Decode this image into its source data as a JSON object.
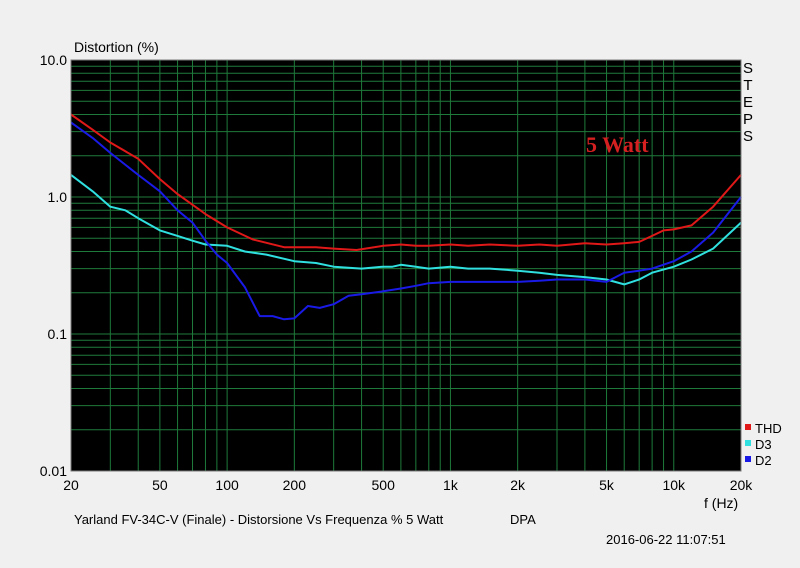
{
  "chart_data": {
    "type": "line",
    "title": "",
    "ylabel": "Distortion (%)",
    "xlabel": "f (Hz)",
    "xscale": "log",
    "yscale": "log",
    "xlim": [
      20,
      20000
    ],
    "ylim": [
      0.01,
      10
    ],
    "grid": true,
    "background": "#000000",
    "grid_color": "#1e7a3a",
    "legend_position": "bottom-right",
    "x_ticks": [
      {
        "v": 20,
        "label": "20"
      },
      {
        "v": 50,
        "label": "50"
      },
      {
        "v": 100,
        "label": "100"
      },
      {
        "v": 200,
        "label": "200"
      },
      {
        "v": 500,
        "label": "500"
      },
      {
        "v": 1000,
        "label": "1k"
      },
      {
        "v": 2000,
        "label": "2k"
      },
      {
        "v": 5000,
        "label": "5k"
      },
      {
        "v": 10000,
        "label": "10k"
      },
      {
        "v": 20000,
        "label": "20k"
      }
    ],
    "y_ticks": [
      {
        "v": 10,
        "label": "10.0"
      },
      {
        "v": 1,
        "label": "1.0"
      },
      {
        "v": 0.1,
        "label": "0.1"
      },
      {
        "v": 0.01,
        "label": "0.01"
      }
    ],
    "annotation": {
      "text": "5 Watt",
      "color": "#d42020"
    },
    "side_label": "STEPS",
    "series": [
      {
        "name": "THD",
        "color": "#e01818",
        "x": [
          20,
          25,
          30,
          40,
          50,
          60,
          80,
          100,
          130,
          180,
          250,
          300,
          380,
          500,
          600,
          700,
          800,
          1000,
          1200,
          1500,
          2000,
          2500,
          3000,
          4000,
          5000,
          6000,
          7000,
          8000,
          9000,
          10000,
          12000,
          15000,
          20000
        ],
        "y": [
          4.0,
          3.1,
          2.5,
          1.9,
          1.35,
          1.05,
          0.75,
          0.6,
          0.49,
          0.43,
          0.43,
          0.42,
          0.41,
          0.44,
          0.45,
          0.44,
          0.44,
          0.45,
          0.44,
          0.45,
          0.44,
          0.45,
          0.44,
          0.46,
          0.45,
          0.46,
          0.47,
          0.52,
          0.57,
          0.58,
          0.62,
          0.85,
          1.45
        ]
      },
      {
        "name": "D3",
        "color": "#30e0e0",
        "x": [
          20,
          25,
          30,
          35,
          40,
          50,
          60,
          70,
          80,
          100,
          120,
          150,
          200,
          250,
          300,
          400,
          500,
          550,
          600,
          700,
          800,
          1000,
          1200,
          1500,
          2000,
          2500,
          3000,
          4000,
          5000,
          6000,
          7000,
          8000,
          10000,
          12000,
          15000,
          20000
        ],
        "y": [
          1.45,
          1.1,
          0.85,
          0.8,
          0.7,
          0.57,
          0.52,
          0.48,
          0.45,
          0.44,
          0.4,
          0.38,
          0.34,
          0.33,
          0.31,
          0.3,
          0.31,
          0.31,
          0.32,
          0.31,
          0.3,
          0.31,
          0.3,
          0.3,
          0.29,
          0.28,
          0.27,
          0.26,
          0.25,
          0.23,
          0.25,
          0.28,
          0.31,
          0.35,
          0.42,
          0.65
        ]
      },
      {
        "name": "D2",
        "color": "#1a1ae6",
        "x": [
          20,
          25,
          30,
          40,
          50,
          60,
          70,
          80,
          90,
          100,
          120,
          140,
          160,
          180,
          200,
          230,
          260,
          300,
          350,
          400,
          500,
          600,
          700,
          800,
          1000,
          1500,
          2000,
          2500,
          3000,
          4000,
          5000,
          6000,
          7000,
          8000,
          10000,
          12000,
          15000,
          20000
        ],
        "y": [
          3.5,
          2.7,
          2.1,
          1.45,
          1.1,
          0.8,
          0.65,
          0.48,
          0.38,
          0.33,
          0.22,
          0.135,
          0.135,
          0.128,
          0.13,
          0.16,
          0.155,
          0.165,
          0.19,
          0.195,
          0.205,
          0.215,
          0.225,
          0.235,
          0.24,
          0.24,
          0.24,
          0.245,
          0.25,
          0.25,
          0.24,
          0.28,
          0.29,
          0.3,
          0.34,
          0.4,
          0.55,
          1.0
        ]
      }
    ]
  },
  "footer": {
    "caption": "Yarland FV-34C-V (Finale) - Distorsione Vs Frequenza % 5 Watt",
    "tag": "DPA",
    "timestamp": "2016-06-22 11:07:51"
  }
}
